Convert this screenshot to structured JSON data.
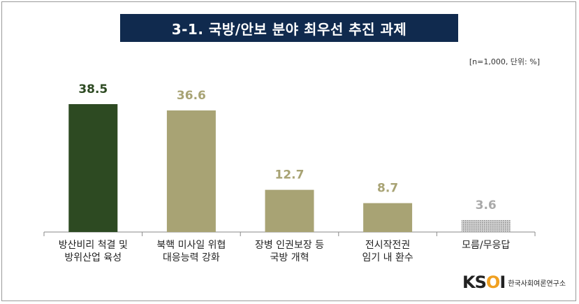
{
  "title": "3-1. 국방/안보 분야 최우선 추진 과제",
  "note": "[n=1,000,  단위: %]",
  "logo": {
    "mark_k": "K",
    "mark_s": "S",
    "mark_o": "O",
    "mark_i": "I",
    "text": "한국사회여론연구소"
  },
  "chart_data": {
    "type": "bar",
    "categories": [
      [
        "방산비리 척결 및",
        "방위산업 육성"
      ],
      [
        "북핵 미사일 위협",
        "대응능력 강화"
      ],
      [
        "장병 인권보장 등",
        "국방 개혁"
      ],
      [
        "전시작전권",
        "임기 내 환수"
      ],
      [
        "모름/무응답"
      ]
    ],
    "values": [
      38.5,
      36.6,
      12.7,
      8.7,
      3.6
    ],
    "value_labels": [
      "38.5",
      "36.6",
      "12.7",
      "8.7",
      "3.6"
    ],
    "colors": [
      "#2d4a22",
      "#a8a374",
      "#a8a374",
      "#a8a374",
      "#b9b9b9"
    ],
    "label_colors": [
      "#2d4a22",
      "#a8a374",
      "#a8a374",
      "#a8a374",
      "#a9a9a9"
    ],
    "patterned": [
      false,
      false,
      false,
      false,
      true
    ],
    "ylim": [
      0,
      40
    ]
  }
}
